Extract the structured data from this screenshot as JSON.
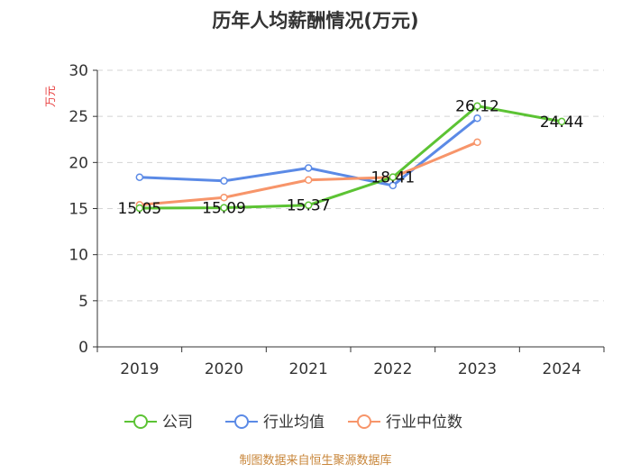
{
  "chart_data": {
    "type": "line",
    "title": "历年人均薪酬情况(万元)",
    "ylabel": "万元",
    "xlabel": "",
    "categories": [
      "2019",
      "2020",
      "2021",
      "2022",
      "2023",
      "2024"
    ],
    "ylim": [
      0,
      30
    ],
    "yticks": [
      0,
      5,
      10,
      15,
      20,
      25,
      30
    ],
    "grid": true,
    "legend_position": "bottom",
    "series": [
      {
        "name": "公司",
        "color": "#5cc334",
        "values": [
          15.05,
          15.09,
          15.37,
          18.41,
          26.12,
          24.44
        ],
        "data_labels": [
          "15.05",
          "15.09",
          "15.37",
          "18.41",
          "26.12",
          "24.44"
        ]
      },
      {
        "name": "行业均值",
        "color": "#5b8ae6",
        "values": [
          18.4,
          18.0,
          19.4,
          17.5,
          24.8,
          null
        ]
      },
      {
        "name": "行业中位数",
        "color": "#f7956a",
        "values": [
          15.4,
          16.2,
          18.1,
          18.4,
          22.2,
          null
        ]
      }
    ]
  },
  "source": "制图数据来自恒生聚源数据库"
}
